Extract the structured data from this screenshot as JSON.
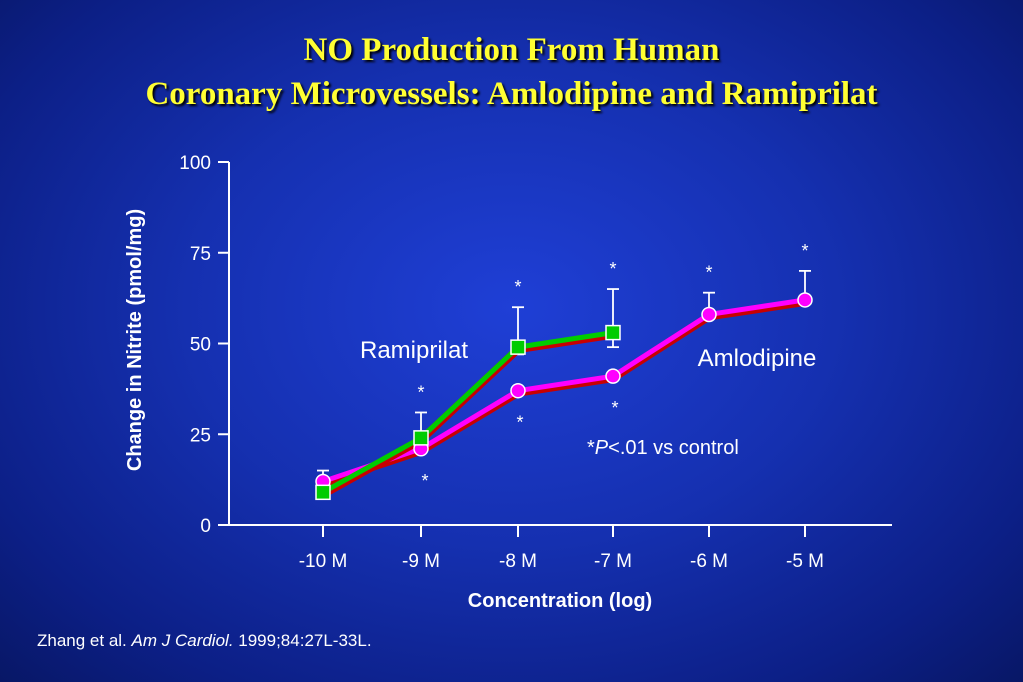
{
  "title": {
    "line1": "NO Production From Human",
    "line2": "Coronary Microvessels: Amlodipine and Ramiprilat"
  },
  "citation": {
    "authors": "Zhang et al. ",
    "journal": "Am J Cardiol.",
    "ref": " 1999;84:27L-33L."
  },
  "colors": {
    "amlodipine_line": "#ff00ff",
    "amlodipine_edge": "#c80000",
    "ramiprilat_line": "#00cc00",
    "ramiprilat_edge": "#c80000",
    "text": "#ffffff",
    "title": "#ffff33"
  },
  "chart_data": {
    "type": "line",
    "xlabel": "Concentration (log)",
    "ylabel": "Change in Nitrite (pmol/mg)",
    "categories": [
      "-10 M",
      "-9 M",
      "-8 M",
      "-7 M",
      "-6 M",
      "-5 M"
    ],
    "ylim": [
      0,
      100
    ],
    "yticks": [
      0,
      25,
      50,
      75,
      100
    ],
    "grid": false,
    "annotation": {
      "star": "*",
      "p": "P",
      "rest": "<.01 vs control"
    },
    "series": [
      {
        "name": "Ramiprilat",
        "marker": "square",
        "values": [
          9,
          24,
          49,
          53,
          null,
          null
        ],
        "err_up": [
          null,
          31,
          60,
          65,
          null,
          null
        ],
        "err_down": [
          null,
          null,
          47,
          49,
          null,
          null
        ],
        "stars_above": [
          false,
          true,
          true,
          true,
          false,
          false
        ]
      },
      {
        "name": "Amlodipine",
        "marker": "circle",
        "values": [
          12,
          21,
          37,
          41,
          58,
          62
        ],
        "err_up": [
          15,
          null,
          null,
          null,
          64,
          70
        ],
        "err_down": [
          null,
          null,
          null,
          null,
          null,
          null
        ],
        "stars_above": [
          false,
          false,
          false,
          false,
          true,
          true
        ],
        "stars_below": [
          false,
          true,
          true,
          true,
          false,
          false
        ]
      }
    ]
  }
}
